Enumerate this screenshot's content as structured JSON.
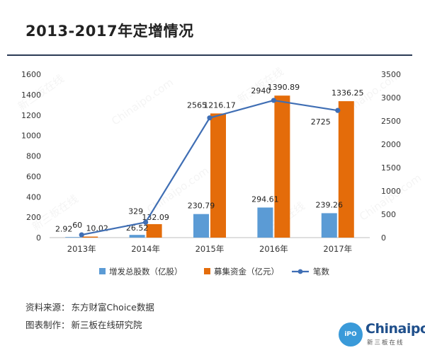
{
  "chart_data": {
    "type": "bar",
    "title": "2013-2017年定增情况",
    "categories": [
      "2013年",
      "2014年",
      "2015年",
      "2016年",
      "2017年"
    ],
    "series": [
      {
        "name": "增发总股数（亿股）",
        "type": "bar",
        "axis": "left",
        "color": "#5b9bd5",
        "values": [
          2.92,
          26.52,
          230.79,
          294.61,
          239.26
        ]
      },
      {
        "name": "募集资金（亿元）",
        "type": "bar",
        "axis": "left",
        "color": "#e46c0a",
        "values": [
          10.02,
          132.09,
          1216.17,
          1390.89,
          1336.25
        ]
      },
      {
        "name": "笔数",
        "type": "line",
        "axis": "right",
        "color": "#3f6eb4",
        "values": [
          60,
          329,
          2565,
          2940,
          2725
        ]
      }
    ],
    "ylim_left": [
      0,
      1600
    ],
    "yticks_left": [
      0,
      200,
      400,
      600,
      800,
      1000,
      1200,
      1400,
      1600
    ],
    "ylim_right": [
      0,
      3500
    ],
    "yticks_right": [
      0,
      500,
      1000,
      1500,
      2000,
      2500,
      3000,
      3500
    ],
    "grid": false,
    "legend_position": "bottom"
  },
  "footer": {
    "source_label": "资料来源：",
    "source_value": "东方财富Choice数据",
    "maker_label": "图表制作：",
    "maker_value": "新三板在线研究院"
  },
  "logo": {
    "circle_text": "iPO",
    "word": "Chinaipo",
    "sub": "新三板在线"
  },
  "watermarks": [
    "新三板在线",
    "Chinaipo.com",
    "新三板在线",
    "Chinaipo.com",
    "新三板在线",
    "Chinaipo.com",
    "新三板在线",
    "Chinaipo.com"
  ]
}
